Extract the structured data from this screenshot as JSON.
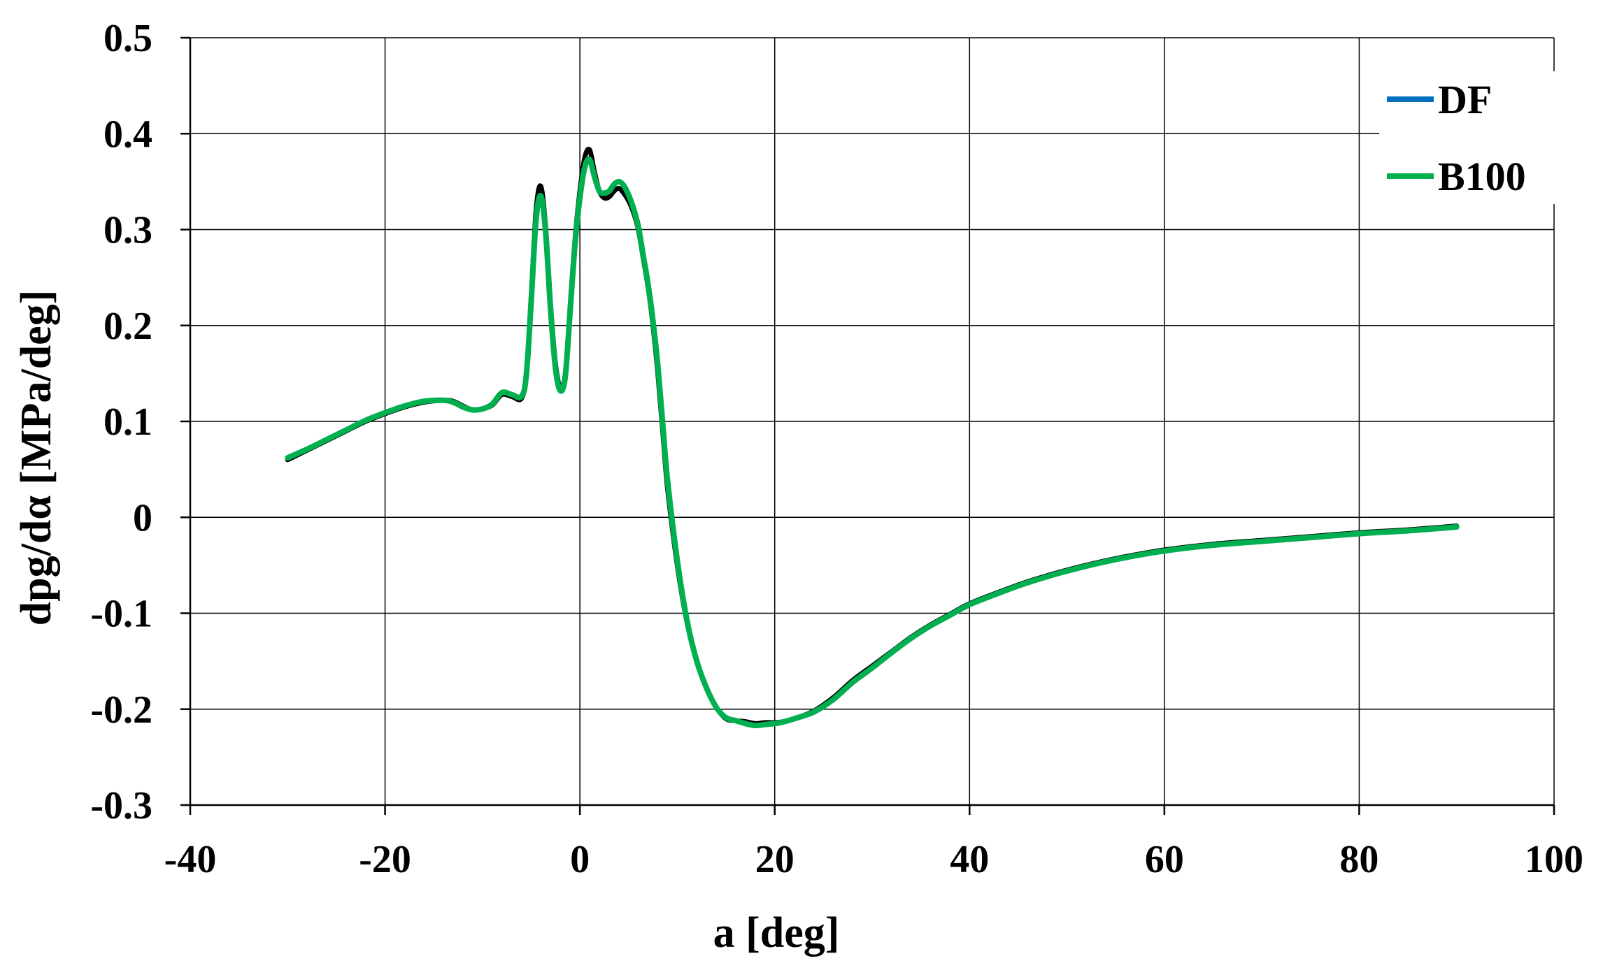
{
  "chart_data": {
    "type": "line",
    "title": "",
    "xlabel": "a [deg]",
    "ylabel": "dpg/dα [MPa/deg]",
    "xlim": [
      -40,
      100
    ],
    "ylim": [
      -0.3,
      0.5
    ],
    "xticks": [
      -40,
      -20,
      0,
      20,
      40,
      60,
      80,
      100
    ],
    "yticks": [
      -0.3,
      -0.2,
      -0.1,
      0,
      0.1,
      0.2,
      0.3,
      0.4,
      0.5
    ],
    "xtick_labels": [
      "-40",
      "-20",
      "0",
      "20",
      "40",
      "60",
      "80",
      "100"
    ],
    "ytick_labels": [
      "-0.3",
      "-0.2",
      "-0.1",
      "0",
      "0.1",
      "0.2",
      "0.3",
      "0.4",
      "0.5"
    ],
    "grid": true,
    "legend_position": "top-right",
    "series": [
      {
        "name": "DF",
        "color": "#000000",
        "legend_color": "#0070c0",
        "x": [
          -30,
          -28,
          -26,
          -24,
          -22,
          -20,
          -18,
          -16,
          -14,
          -13,
          -12,
          -11,
          -10,
          -9,
          -8,
          -7,
          -6,
          -5.5,
          -5,
          -4.5,
          -4,
          -3.5,
          -3,
          -2.5,
          -2,
          -1.5,
          -1,
          -0.5,
          0,
          0.5,
          1,
          1.5,
          2,
          2.5,
          3,
          3.5,
          4,
          4.5,
          5,
          5.5,
          6,
          6.5,
          7,
          7.5,
          8,
          8.5,
          9,
          10,
          11,
          12,
          13,
          14,
          15,
          16,
          17,
          18,
          19,
          20,
          21,
          22,
          24,
          26,
          28,
          30,
          32,
          34,
          36,
          38,
          40,
          43,
          46,
          50,
          55,
          60,
          65,
          70,
          75,
          80,
          85,
          90
        ],
        "y": [
          0.06,
          0.07,
          0.08,
          0.09,
          0.1,
          0.108,
          0.115,
          0.12,
          0.122,
          0.121,
          0.116,
          0.112,
          0.113,
          0.117,
          0.128,
          0.126,
          0.124,
          0.15,
          0.23,
          0.32,
          0.345,
          0.3,
          0.22,
          0.16,
          0.135,
          0.15,
          0.22,
          0.29,
          0.34,
          0.375,
          0.383,
          0.36,
          0.34,
          0.333,
          0.334,
          0.34,
          0.343,
          0.338,
          0.33,
          0.318,
          0.3,
          0.27,
          0.24,
          0.2,
          0.15,
          0.09,
          0.03,
          -0.05,
          -0.11,
          -0.15,
          -0.178,
          -0.198,
          -0.21,
          -0.212,
          -0.213,
          -0.215,
          -0.214,
          -0.214,
          -0.213,
          -0.21,
          -0.202,
          -0.188,
          -0.17,
          -0.155,
          -0.14,
          -0.125,
          -0.112,
          -0.101,
          -0.09,
          -0.078,
          -0.067,
          -0.055,
          -0.043,
          -0.034,
          -0.028,
          -0.024,
          -0.02,
          -0.016,
          -0.013,
          -0.009
        ]
      },
      {
        "name": "B100",
        "color": "#00b050",
        "legend_color": "#00b050",
        "x": [
          -30,
          -28,
          -26,
          -24,
          -22,
          -20,
          -18,
          -16,
          -14,
          -13,
          -12,
          -11,
          -10,
          -9,
          -8,
          -7,
          -6,
          -5.5,
          -5,
          -4.5,
          -4,
          -3.5,
          -3,
          -2.5,
          -2,
          -1.5,
          -1,
          -0.5,
          0,
          0.5,
          1,
          1.5,
          2,
          2.5,
          3,
          3.5,
          4,
          4.5,
          5,
          5.5,
          6,
          6.5,
          7,
          7.5,
          8,
          8.5,
          9,
          10,
          11,
          12,
          13,
          14,
          15,
          16,
          17,
          18,
          19,
          20,
          21,
          22,
          24,
          26,
          28,
          30,
          32,
          34,
          36,
          38,
          40,
          43,
          46,
          50,
          55,
          60,
          65,
          70,
          75,
          80,
          85,
          90
        ],
        "y": [
          0.062,
          0.071,
          0.081,
          0.091,
          0.101,
          0.109,
          0.116,
          0.121,
          0.122,
          0.12,
          0.115,
          0.112,
          0.113,
          0.118,
          0.13,
          0.128,
          0.126,
          0.148,
          0.225,
          0.31,
          0.335,
          0.295,
          0.215,
          0.155,
          0.132,
          0.147,
          0.215,
          0.285,
          0.333,
          0.365,
          0.373,
          0.355,
          0.34,
          0.338,
          0.34,
          0.347,
          0.35,
          0.346,
          0.336,
          0.322,
          0.303,
          0.273,
          0.243,
          0.205,
          0.158,
          0.098,
          0.038,
          -0.045,
          -0.108,
          -0.15,
          -0.178,
          -0.198,
          -0.209,
          -0.212,
          -0.215,
          -0.217,
          -0.216,
          -0.215,
          -0.213,
          -0.21,
          -0.203,
          -0.19,
          -0.172,
          -0.157,
          -0.141,
          -0.126,
          -0.113,
          -0.102,
          -0.091,
          -0.079,
          -0.068,
          -0.056,
          -0.044,
          -0.035,
          -0.029,
          -0.025,
          -0.021,
          -0.017,
          -0.014,
          -0.01
        ]
      }
    ]
  }
}
